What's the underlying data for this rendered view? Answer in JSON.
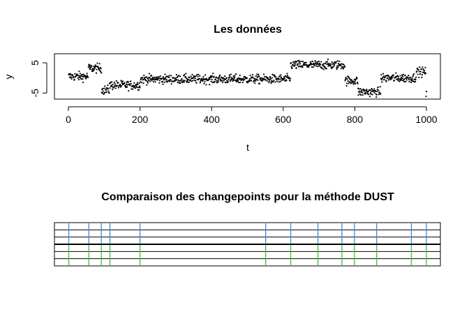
{
  "chart_data": [
    {
      "type": "scatter",
      "title": "Les données",
      "xlabel": "t",
      "ylabel": "y",
      "xlim": [
        0,
        1000
      ],
      "ylim": [
        -7,
        8
      ],
      "x_ticks": [
        0,
        200,
        400,
        600,
        800,
        1000
      ],
      "x_tick_labels": [
        "0",
        "200",
        "400",
        "600",
        "800",
        "1000"
      ],
      "y_ticks": [
        -5,
        5
      ],
      "y_tick_labels": [
        "-5",
        "5"
      ],
      "point_color": "#000000",
      "grid": false,
      "segments": [
        {
          "start": 1,
          "end": 55,
          "mean": 0.5
        },
        {
          "start": 56,
          "end": 92,
          "mean": 3.2
        },
        {
          "start": 93,
          "end": 114,
          "mean": -4.0
        },
        {
          "start": 115,
          "end": 200,
          "mean": -2.4
        },
        {
          "start": 201,
          "end": 620,
          "mean": -0.4
        },
        {
          "start": 621,
          "end": 772,
          "mean": 4.3
        },
        {
          "start": 773,
          "end": 808,
          "mean": -0.9
        },
        {
          "start": 809,
          "end": 872,
          "mean": -4.6
        },
        {
          "start": 873,
          "end": 970,
          "mean": 0.0
        },
        {
          "start": 971,
          "end": 998,
          "mean": 2.0
        },
        {
          "start": 999,
          "end": 1000,
          "mean": -5.5
        }
      ],
      "noise_sd": 1.0
    },
    {
      "type": "changepoint-comparison",
      "title": "Comparaison des changepoints pour la méthode DUST",
      "xlim": [
        0,
        1000
      ],
      "rows": 6,
      "thick_line_after_row": 3,
      "changepoints": [
        1,
        57,
        92,
        116,
        200,
        551,
        621,
        697,
        764,
        799,
        861,
        958,
        1000
      ],
      "upper_color": "#3b8ad8",
      "lower_color": "#3fbf3f"
    }
  ]
}
